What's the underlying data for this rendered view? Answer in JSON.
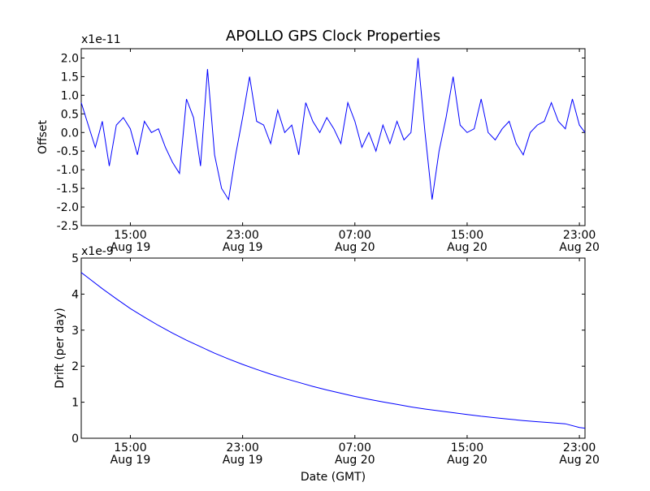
{
  "chart_data": {
    "title": "APOLLO GPS Clock Properties",
    "line_color": "#0000ff",
    "x_ticks": [
      {
        "hour": 15,
        "top": "15:00",
        "bottom": "Aug 19"
      },
      {
        "hour": 23,
        "top": "23:00",
        "bottom": "Aug 19"
      },
      {
        "hour": 31,
        "top": "07:00",
        "bottom": "Aug 20"
      },
      {
        "hour": 39,
        "top": "15:00",
        "bottom": "Aug 20"
      },
      {
        "hour": 47,
        "top": "23:00",
        "bottom": "Aug 20"
      }
    ],
    "x_range_hours": [
      11.5,
      47.4
    ],
    "charts": [
      {
        "type": "line",
        "id": "offset",
        "ylabel": "Offset",
        "multiplier": "x1e-11",
        "ylim": [
          -2.5,
          2.25
        ],
        "yticks": [
          -2.5,
          -2.0,
          -1.5,
          -1.0,
          -0.5,
          0.0,
          0.5,
          1.0,
          1.5,
          2.0
        ],
        "ytick_labels": [
          "-2.5",
          "-2.0",
          "-1.5",
          "-1.0",
          "-0.5",
          "0.0",
          "0.5",
          "1.0",
          "1.5",
          "2.0"
        ],
        "xlabel": "",
        "x": [
          11.5,
          12.0,
          12.5,
          13.0,
          13.5,
          14.0,
          14.5,
          15.0,
          15.5,
          16.0,
          16.5,
          17.0,
          17.5,
          18.0,
          18.5,
          19.0,
          19.5,
          20.0,
          20.5,
          21.0,
          21.5,
          22.0,
          22.5,
          23.0,
          23.5,
          24.0,
          24.5,
          25.0,
          25.5,
          26.0,
          26.5,
          27.0,
          27.5,
          28.0,
          28.5,
          29.0,
          29.5,
          30.0,
          30.5,
          31.0,
          31.5,
          32.0,
          32.5,
          33.0,
          33.5,
          34.0,
          34.5,
          35.0,
          35.5,
          36.0,
          36.5,
          37.0,
          37.5,
          38.0,
          38.5,
          39.0,
          39.5,
          40.0,
          40.5,
          41.0,
          41.5,
          42.0,
          42.5,
          43.0,
          43.5,
          44.0,
          44.5,
          45.0,
          45.5,
          46.0,
          46.5,
          47.0,
          47.4
        ],
        "values": [
          0.8,
          0.2,
          -0.4,
          0.3,
          -0.9,
          0.2,
          0.4,
          0.1,
          -0.6,
          0.3,
          0.0,
          0.1,
          -0.4,
          -0.8,
          -1.1,
          0.9,
          0.4,
          -0.9,
          1.7,
          -0.6,
          -1.5,
          -1.8,
          -0.6,
          0.4,
          1.5,
          0.3,
          0.2,
          -0.3,
          0.6,
          0.0,
          0.2,
          -0.6,
          0.8,
          0.3,
          0.0,
          0.4,
          0.1,
          -0.3,
          0.8,
          0.3,
          -0.4,
          0.0,
          -0.5,
          0.2,
          -0.3,
          0.3,
          -0.2,
          0.0,
          2.0,
          0.0,
          -1.8,
          -0.5,
          0.4,
          1.5,
          0.2,
          0.0,
          0.1,
          0.9,
          0.0,
          -0.2,
          0.1,
          0.3,
          -0.3,
          -0.6,
          0.0,
          0.2,
          0.3,
          0.8,
          0.3,
          0.1,
          0.9,
          0.2,
          0.0
        ]
      },
      {
        "type": "line",
        "id": "drift",
        "ylabel": "Drift (per day)",
        "multiplier": "x1e-9",
        "ylim": [
          0,
          5
        ],
        "yticks": [
          0,
          1,
          2,
          3,
          4,
          5
        ],
        "ytick_labels": [
          "0",
          "1",
          "2",
          "3",
          "4",
          "5"
        ],
        "xlabel": "Date (GMT)",
        "x": [
          11.5,
          12.0,
          13.0,
          14.0,
          15.0,
          16.0,
          17.0,
          18.0,
          19.0,
          20.0,
          21.0,
          22.0,
          23.0,
          24.0,
          25.0,
          26.0,
          27.0,
          28.0,
          29.0,
          30.0,
          31.0,
          32.0,
          33.0,
          34.0,
          35.0,
          36.0,
          37.0,
          38.0,
          39.0,
          40.0,
          41.0,
          42.0,
          43.0,
          44.0,
          45.0,
          46.0,
          47.0,
          47.4
        ],
        "values": [
          4.6,
          4.45,
          4.15,
          3.87,
          3.6,
          3.36,
          3.13,
          2.92,
          2.72,
          2.54,
          2.36,
          2.2,
          2.05,
          1.91,
          1.78,
          1.66,
          1.55,
          1.44,
          1.34,
          1.25,
          1.16,
          1.08,
          1.01,
          0.94,
          0.87,
          0.81,
          0.76,
          0.71,
          0.66,
          0.61,
          0.57,
          0.53,
          0.49,
          0.46,
          0.43,
          0.4,
          0.3,
          0.28
        ]
      }
    ]
  }
}
